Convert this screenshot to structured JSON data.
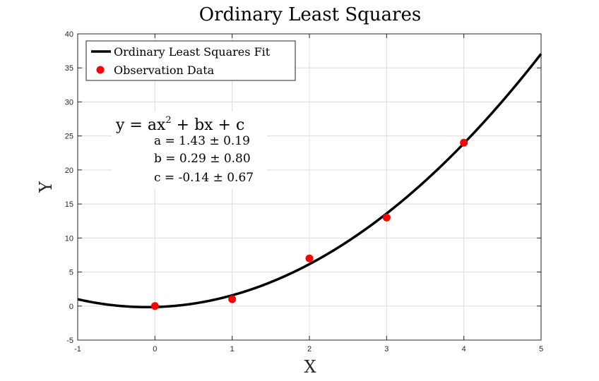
{
  "chart_data": {
    "type": "scatter",
    "title": "Ordinary Least Squares",
    "xlabel": "X",
    "ylabel": "Y",
    "xlim": [
      -1,
      5
    ],
    "ylim": [
      -5,
      40
    ],
    "xticks": [
      -1,
      0,
      1,
      2,
      3,
      4,
      5
    ],
    "yticks": [
      -5,
      0,
      5,
      10,
      15,
      20,
      25,
      30,
      35,
      40
    ],
    "grid": true,
    "legend_position": "top-left",
    "series": [
      {
        "name": "Ordinary Least Squares Fit",
        "kind": "line",
        "color": "#000000",
        "coefficients": {
          "a": 1.43,
          "b": 0.29,
          "c": -0.14
        }
      },
      {
        "name": "Observation Data",
        "kind": "scatter",
        "color": "#ff0000",
        "x": [
          0,
          1,
          2,
          3,
          4
        ],
        "y": [
          0,
          1,
          7,
          13,
          24
        ]
      }
    ],
    "annotation": {
      "equation_lhs": "y = ax",
      "equation_exp": "2",
      "equation_rhs": " + bx + c",
      "lines": [
        "a = 1.43 ± 0.19",
        "b = 0.29 ± 0.80",
        "c = -0.14 ± 0.67"
      ]
    }
  }
}
